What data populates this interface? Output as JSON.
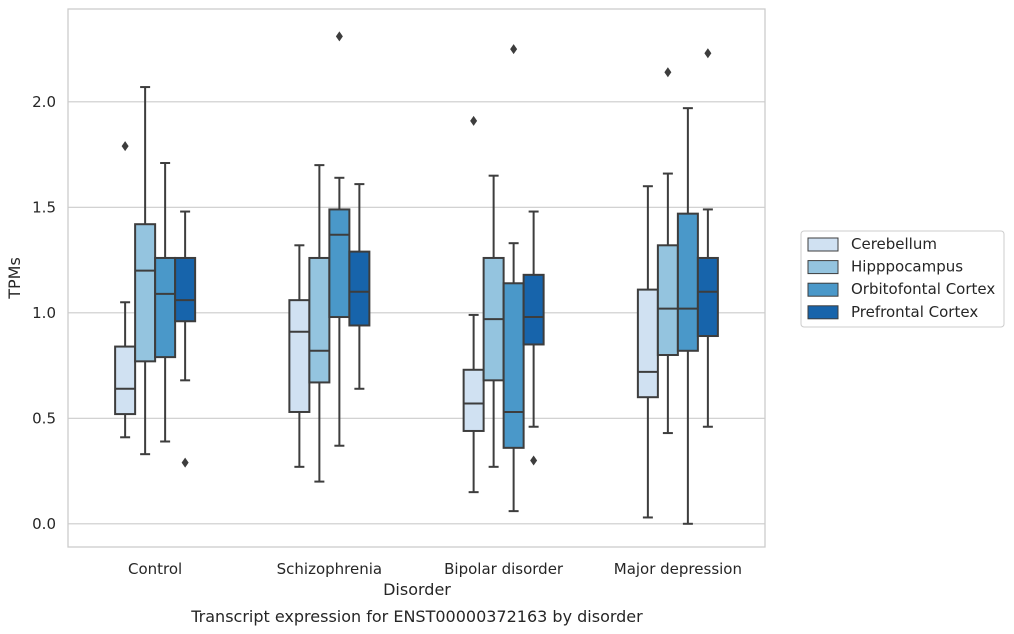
{
  "chart_data": {
    "type": "box",
    "caption": "Transcript expression for ENST00000372163 by disorder",
    "xlabel": "Disorder",
    "ylabel": "TPMs",
    "ylim": [
      -0.11,
      2.44
    ],
    "yticks": [
      0.0,
      0.5,
      1.0,
      1.5,
      2.0
    ],
    "ytick_labels": [
      "0.0",
      "0.5",
      "1.0",
      "1.5",
      "2.0"
    ],
    "grid": "horizontal",
    "legend_position": "right",
    "categories": [
      "Control",
      "Schizophrenia",
      "Bipolar disorder",
      "Major depression"
    ],
    "series": [
      {
        "name": "Cerebellum",
        "color": "#d0e1f2",
        "boxes": [
          {
            "whisker_low": 0.41,
            "q1": 0.52,
            "median": 0.64,
            "q3": 0.84,
            "whisker_high": 1.05,
            "outliers": [
              1.79
            ]
          },
          {
            "whisker_low": 0.27,
            "q1": 0.53,
            "median": 0.91,
            "q3": 1.06,
            "whisker_high": 1.32,
            "outliers": []
          },
          {
            "whisker_low": 0.15,
            "q1": 0.44,
            "median": 0.57,
            "q3": 0.73,
            "whisker_high": 0.99,
            "outliers": [
              1.91
            ]
          },
          {
            "whisker_low": 0.03,
            "q1": 0.6,
            "median": 0.72,
            "q3": 1.11,
            "whisker_high": 1.6,
            "outliers": []
          }
        ]
      },
      {
        "name": "Hipppocampus",
        "color": "#94c4df",
        "boxes": [
          {
            "whisker_low": 0.33,
            "q1": 0.77,
            "median": 1.2,
            "q3": 1.42,
            "whisker_high": 2.07,
            "outliers": []
          },
          {
            "whisker_low": 0.2,
            "q1": 0.67,
            "median": 0.82,
            "q3": 1.26,
            "whisker_high": 1.7,
            "outliers": []
          },
          {
            "whisker_low": 0.27,
            "q1": 0.68,
            "median": 0.97,
            "q3": 1.26,
            "whisker_high": 1.65,
            "outliers": []
          },
          {
            "whisker_low": 0.43,
            "q1": 0.8,
            "median": 1.02,
            "q3": 1.32,
            "whisker_high": 1.66,
            "outliers": [
              2.14
            ]
          }
        ]
      },
      {
        "name": "Orbitofontal Cortex",
        "color": "#4a98c9",
        "boxes": [
          {
            "whisker_low": 0.39,
            "q1": 0.79,
            "median": 1.09,
            "q3": 1.26,
            "whisker_high": 1.71,
            "outliers": []
          },
          {
            "whisker_low": 0.37,
            "q1": 0.98,
            "median": 1.37,
            "q3": 1.49,
            "whisker_high": 1.64,
            "outliers": [
              2.31
            ]
          },
          {
            "whisker_low": 0.06,
            "q1": 0.36,
            "median": 0.53,
            "q3": 1.14,
            "whisker_high": 1.33,
            "outliers": [
              2.25
            ]
          },
          {
            "whisker_low": 0.0,
            "q1": 0.82,
            "median": 1.02,
            "q3": 1.47,
            "whisker_high": 1.97,
            "outliers": []
          }
        ]
      },
      {
        "name": "Prefrontal Cortex",
        "color": "#1764ab",
        "boxes": [
          {
            "whisker_low": 0.68,
            "q1": 0.96,
            "median": 1.06,
            "q3": 1.26,
            "whisker_high": 1.48,
            "outliers": [
              0.29
            ]
          },
          {
            "whisker_low": 0.64,
            "q1": 0.94,
            "median": 1.1,
            "q3": 1.29,
            "whisker_high": 1.61,
            "outliers": []
          },
          {
            "whisker_low": 0.46,
            "q1": 0.85,
            "median": 0.98,
            "q3": 1.18,
            "whisker_high": 1.48,
            "outliers": [
              0.3
            ]
          },
          {
            "whisker_low": 0.46,
            "q1": 0.89,
            "median": 1.1,
            "q3": 1.26,
            "whisker_high": 1.49,
            "outliers": [
              2.23
            ]
          }
        ]
      }
    ]
  }
}
